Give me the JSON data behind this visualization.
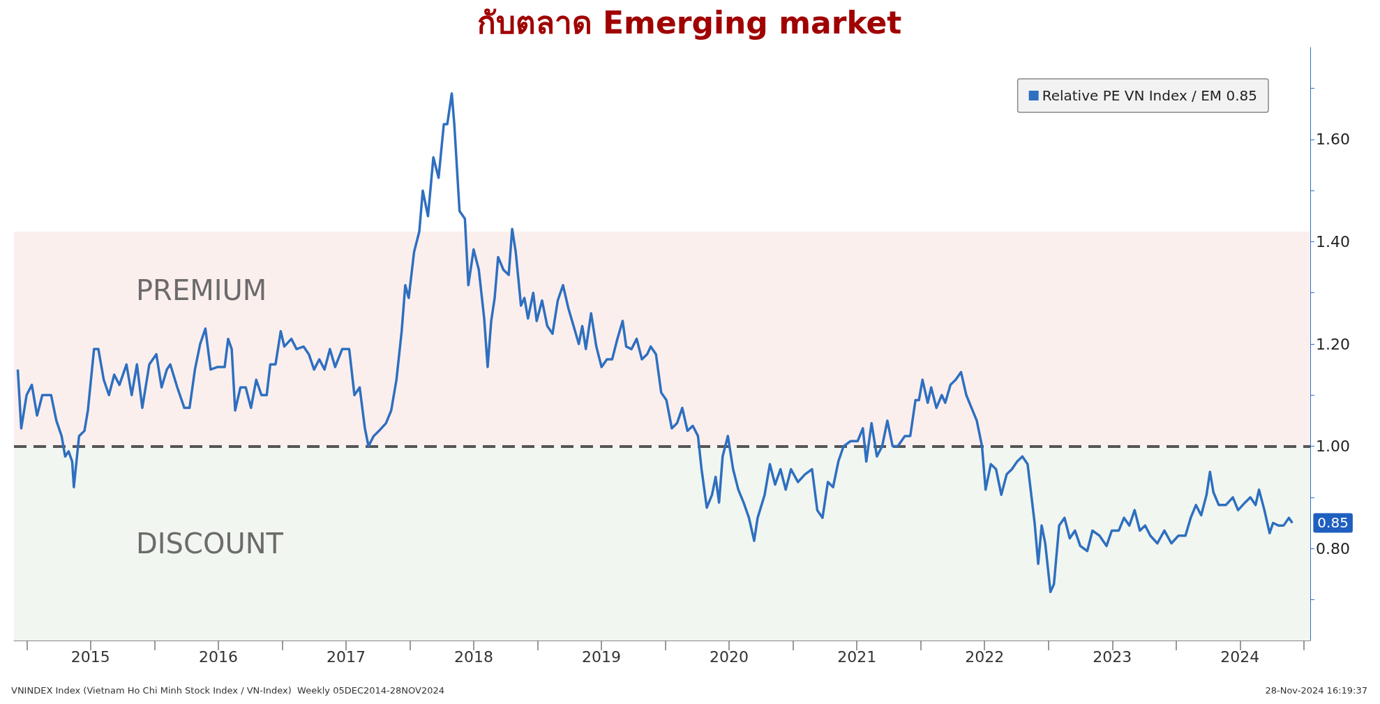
{
  "chart_data": {
    "type": "line",
    "title": "กับตลาด Emerging market",
    "legend": "top right",
    "marker": "none",
    "grid": false,
    "xlim": [
      2014.9,
      2025.05
    ],
    "xticks": [
      {
        "value": 2015,
        "label": null
      },
      {
        "value": 2015.5,
        "label": "2015"
      },
      {
        "value": 2016,
        "label": null
      },
      {
        "value": 2016.5,
        "label": "2016"
      },
      {
        "value": 2017,
        "label": null
      },
      {
        "value": 2017.5,
        "label": "2017"
      },
      {
        "value": 2018,
        "label": null
      },
      {
        "value": 2018.5,
        "label": "2018"
      },
      {
        "value": 2019,
        "label": null
      },
      {
        "value": 2019.5,
        "label": "2019"
      },
      {
        "value": 2020,
        "label": null
      },
      {
        "value": 2020.5,
        "label": "2020"
      },
      {
        "value": 2021,
        "label": null
      },
      {
        "value": 2021.5,
        "label": "2021"
      },
      {
        "value": 2022,
        "label": null
      },
      {
        "value": 2022.5,
        "label": "2022"
      },
      {
        "value": 2023,
        "label": null
      },
      {
        "value": 2023.5,
        "label": "2023"
      },
      {
        "value": 2024,
        "label": null
      },
      {
        "value": 2024.5,
        "label": "2024"
      },
      {
        "value": 2025,
        "label": null
      }
    ],
    "ylim": [
      0.62,
      1.78
    ],
    "yticks": [
      {
        "value": 0.7,
        "label": null
      },
      {
        "value": 0.8,
        "label": "0.80"
      },
      {
        "value": 0.9,
        "label": null
      },
      {
        "value": 1.0,
        "label": "1.00"
      },
      {
        "value": 1.1,
        "label": null
      },
      {
        "value": 1.2,
        "label": "1.20"
      },
      {
        "value": 1.3,
        "label": null
      },
      {
        "value": 1.4,
        "label": "1.40"
      },
      {
        "value": 1.5,
        "label": null
      },
      {
        "value": 1.6,
        "label": "1.60"
      },
      {
        "value": 1.7,
        "label": null
      }
    ],
    "series": [
      {
        "name": "Relative PE VN Index / EM 0.85",
        "color": "#2e6fc0",
        "x": [
          2014.93,
          2014.957,
          2014.999,
          2015.04,
          2015.081,
          2015.122,
          2015.191,
          2015.232,
          2015.273,
          2015.301,
          2015.328,
          2015.356,
          2015.369,
          2015.41,
          2015.452,
          2015.479,
          2015.527,
          2015.561,
          2015.603,
          2015.644,
          2015.685,
          2015.726,
          2015.781,
          2015.822,
          2015.863,
          2015.905,
          2015.96,
          2016.015,
          2016.056,
          2016.097,
          2016.124,
          2016.179,
          2016.234,
          2016.275,
          2016.317,
          2016.358,
          2016.399,
          2016.44,
          2016.495,
          2016.55,
          2016.577,
          2016.605,
          2016.632,
          2016.673,
          2016.715,
          2016.756,
          2016.797,
          2016.838,
          2016.879,
          2016.907,
          2016.948,
          2016.989,
          2017.017,
          2017.072,
          2017.113,
          2017.168,
          2017.209,
          2017.25,
          2017.291,
          2017.332,
          2017.374,
          2017.415,
          2017.47,
          2017.525,
          2017.566,
          2017.607,
          2017.648,
          2017.676,
          2017.717,
          2017.758,
          2017.813,
          2017.854,
          2017.895,
          2017.936,
          2017.964,
          2017.991,
          2018.033,
          2018.074,
          2018.101,
          2018.142,
          2018.184,
          2018.225,
          2018.266,
          2018.293,
          2018.328,
          2018.348,
          2018.389,
          2018.431,
          2018.458,
          2018.499,
          2018.54,
          2018.582,
          2018.609,
          2018.637,
          2018.664,
          2018.691,
          2018.733,
          2018.774,
          2018.801,
          2018.829,
          2018.87,
          2018.897,
          2018.925,
          2018.966,
          2018.993,
          2019.035,
          2019.076,
          2019.117,
          2019.158,
          2019.199,
          2019.241,
          2019.282,
          2019.323,
          2019.35,
          2019.378,
          2019.419,
          2019.46,
          2019.501,
          2019.543,
          2019.584,
          2019.625,
          2019.666,
          2019.694,
          2019.735,
          2019.776,
          2019.817,
          2019.858,
          2019.886,
          2019.927,
          2019.968,
          2020.009,
          2020.051,
          2020.092,
          2020.133,
          2020.174,
          2020.215,
          2020.256,
          2020.284,
          2020.325,
          2020.366,
          2020.394,
          2020.421,
          2020.449,
          2020.49,
          2020.531,
          2020.572,
          2020.613,
          2020.655,
          2020.696,
          2020.723,
          2020.778,
          2020.819,
          2020.86,
          2020.902,
          2020.943,
          2020.984,
          2021.039,
          2021.094,
          2021.149,
          2021.19,
          2021.231,
          2021.273,
          2021.314,
          2021.355,
          2021.396,
          2021.451,
          2021.506,
          2021.547,
          2021.574,
          2021.615,
          2021.657,
          2021.698,
          2021.739,
          2021.78,
          2021.821,
          2021.876,
          2021.918,
          2021.959,
          2021.986,
          2022.014,
          2022.055,
          2022.082,
          2022.123,
          2022.165,
          2022.192,
          2022.233,
          2022.274,
          2022.316,
          2022.357,
          2022.398,
          2022.439,
          2022.48,
          2022.508,
          2022.549,
          2022.59,
          2022.631,
          2022.673,
          2022.714,
          2022.755,
          2022.796,
          2022.837,
          2022.892,
          2022.92,
          2022.947,
          2022.975,
          2023.016,
          2023.043,
          2023.084,
          2023.126,
          2023.167,
          2023.208,
          2023.249,
          2023.304,
          2023.345,
          2023.4,
          2023.455,
          2023.496,
          2023.551,
          2023.592,
          2023.634,
          2023.675,
          2023.716,
          2023.757,
          2023.798,
          2023.853,
          2023.908,
          2023.963,
          2024.018,
          2024.073,
          2024.114,
          2024.155,
          2024.196,
          2024.238,
          2024.265,
          2024.292,
          2024.334,
          2024.389,
          2024.444,
          2024.485,
          2024.54,
          2024.581,
          2024.622,
          2024.649,
          2024.691,
          2024.732,
          2024.759,
          2024.801,
          2024.842,
          2024.883,
          2024.91
        ],
        "values": [
          1.15,
          1.035,
          1.1,
          1.12,
          1.06,
          1.1,
          1.1,
          1.05,
          1.02,
          0.98,
          0.99,
          0.97,
          0.92,
          1.02,
          1.03,
          1.07,
          1.19,
          1.19,
          1.13,
          1.1,
          1.14,
          1.12,
          1.16,
          1.1,
          1.16,
          1.075,
          1.16,
          1.18,
          1.115,
          1.15,
          1.16,
          1.115,
          1.075,
          1.075,
          1.15,
          1.2,
          1.23,
          1.15,
          1.155,
          1.155,
          1.21,
          1.19,
          1.07,
          1.115,
          1.115,
          1.075,
          1.13,
          1.1,
          1.1,
          1.16,
          1.16,
          1.225,
          1.195,
          1.21,
          1.19,
          1.195,
          1.18,
          1.15,
          1.17,
          1.15,
          1.19,
          1.155,
          1.19,
          1.19,
          1.1,
          1.115,
          1.035,
          1.0,
          1.02,
          1.03,
          1.045,
          1.07,
          1.13,
          1.225,
          1.315,
          1.29,
          1.38,
          1.42,
          1.5,
          1.45,
          1.565,
          1.525,
          1.63,
          1.63,
          1.69,
          1.63,
          1.46,
          1.445,
          1.315,
          1.385,
          1.345,
          1.25,
          1.155,
          1.245,
          1.29,
          1.37,
          1.345,
          1.335,
          1.425,
          1.38,
          1.275,
          1.29,
          1.25,
          1.3,
          1.245,
          1.285,
          1.235,
          1.22,
          1.285,
          1.315,
          1.27,
          1.235,
          1.2,
          1.235,
          1.19,
          1.26,
          1.195,
          1.155,
          1.17,
          1.17,
          1.21,
          1.245,
          1.195,
          1.19,
          1.21,
          1.17,
          1.18,
          1.195,
          1.18,
          1.105,
          1.09,
          1.035,
          1.045,
          1.075,
          1.03,
          1.04,
          1.02,
          0.955,
          0.88,
          0.905,
          0.94,
          0.89,
          0.98,
          1.02,
          0.955,
          0.915,
          0.89,
          0.86,
          0.815,
          0.86,
          0.905,
          0.965,
          0.925,
          0.955,
          0.915,
          0.955,
          0.93,
          0.945,
          0.955,
          0.875,
          0.86,
          0.93,
          0.92,
          0.97,
          1.0,
          1.01,
          1.01,
          1.035,
          0.97,
          1.045,
          0.98,
          1.0,
          1.05,
          1.0,
          1.0,
          1.02,
          1.02,
          1.09,
          1.09,
          1.13,
          1.085,
          1.115,
          1.075,
          1.1,
          1.085,
          1.12,
          1.13,
          1.145,
          1.1,
          1.075,
          1.05,
          1.0,
          0.915,
          0.965,
          0.955,
          0.905,
          0.945,
          0.955,
          0.97,
          0.98,
          0.965,
          0.85,
          0.77,
          0.845,
          0.81,
          0.715,
          0.73,
          0.845,
          0.86,
          0.82,
          0.835,
          0.805,
          0.795,
          0.835,
          0.825,
          0.805,
          0.835,
          0.835,
          0.86,
          0.845,
          0.875,
          0.835,
          0.845,
          0.825,
          0.81,
          0.835,
          0.81,
          0.825,
          0.825,
          0.86,
          0.885,
          0.865,
          0.905,
          0.95,
          0.91,
          0.885,
          0.885,
          0.9,
          0.875,
          0.89,
          0.9,
          0.885,
          0.915,
          0.875,
          0.83,
          0.85,
          0.845,
          0.845,
          0.86,
          0.85
        ]
      }
    ],
    "ref_lines": [
      {
        "axis": "y",
        "value": 1.0,
        "color": "#555555",
        "line_style": "dashed"
      }
    ],
    "bands": [
      {
        "axis": "y",
        "from": 1.0,
        "to": 1.42,
        "label": "PREMIUM",
        "color": "#fbefee"
      },
      {
        "axis": "y",
        "from": 0.62,
        "to": 1.0,
        "label": "DISCOUNT",
        "color": "#f2f6f0"
      }
    ],
    "annotations": [
      "VNINDEX Index (Vietnam Ho Chi Minh Stock Index / VN-Index)  Weekly 05DEC2014-28NOV2024",
      "28-Nov-2024 16:19:37",
      {
        "text": "0.85",
        "x": 2024.91,
        "y": 0.85
      }
    ]
  }
}
